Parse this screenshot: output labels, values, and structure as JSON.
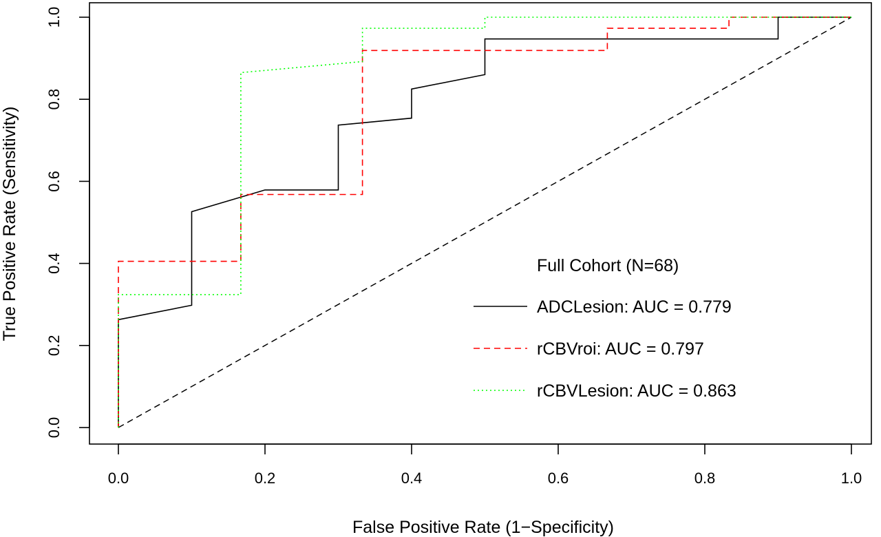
{
  "chart_data": {
    "type": "line",
    "title": "",
    "xlabel": "False Positive Rate (1−Specificity)",
    "ylabel": "True Positive Rate (Sensitivity)",
    "xlim": [
      0,
      1
    ],
    "ylim": [
      0,
      1
    ],
    "x_ticks": [
      "0.0",
      "0.2",
      "0.4",
      "0.6",
      "0.8",
      "1.0"
    ],
    "y_ticks": [
      "0.0",
      "0.2",
      "0.4",
      "0.6",
      "0.8",
      "1.0"
    ],
    "grid": false,
    "legend": {
      "title": "Full Cohort (N=68)",
      "placement": "lower-right"
    },
    "series": [
      {
        "name": "ADCLesion: AUC = 0.779",
        "color": "#000000",
        "line_style": "solid",
        "points": [
          [
            0,
            0
          ],
          [
            0,
            0.263
          ],
          [
            0.1,
            0.298
          ],
          [
            0.1,
            0.526
          ],
          [
            0.2,
            0.579
          ],
          [
            0.3,
            0.579
          ],
          [
            0.3,
            0.737
          ],
          [
            0.4,
            0.754
          ],
          [
            0.4,
            0.825
          ],
          [
            0.5,
            0.86
          ],
          [
            0.5,
            0.947
          ],
          [
            0.9,
            0.947
          ],
          [
            0.9,
            1.0
          ],
          [
            1.0,
            1.0
          ]
        ]
      },
      {
        "name": "rCBVroi: AUC = 0.797",
        "color": "#ff0000",
        "line_style": "dashed",
        "points": [
          [
            0,
            0
          ],
          [
            0,
            0.405
          ],
          [
            0.167,
            0.405
          ],
          [
            0.167,
            0.568
          ],
          [
            0.333,
            0.568
          ],
          [
            0.333,
            0.919
          ],
          [
            0.667,
            0.919
          ],
          [
            0.667,
            0.973
          ],
          [
            0.833,
            0.973
          ],
          [
            0.833,
            1.0
          ],
          [
            1.0,
            1.0
          ]
        ]
      },
      {
        "name": "rCBVLesion: AUC = 0.863",
        "color": "#00ff00",
        "line_style": "dotted",
        "points": [
          [
            0,
            0
          ],
          [
            0,
            0.324
          ],
          [
            0.167,
            0.324
          ],
          [
            0.167,
            0.865
          ],
          [
            0.333,
            0.892
          ],
          [
            0.333,
            0.973
          ],
          [
            0.5,
            0.973
          ],
          [
            0.5,
            1.0
          ],
          [
            1.0,
            1.0
          ]
        ]
      }
    ],
    "reference_line": {
      "points": [
        [
          0,
          0
        ],
        [
          1,
          1
        ]
      ],
      "color": "#000000",
      "line_style": "dashed"
    }
  }
}
